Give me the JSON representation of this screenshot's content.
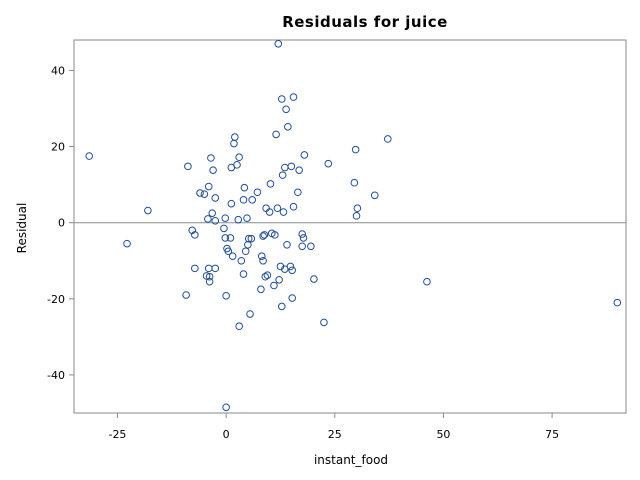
{
  "chart_data": {
    "type": "scatter",
    "title": "Residuals for juice",
    "xlabel": "instant_food",
    "ylabel": "Residual",
    "xlim": [
      -35,
      92
    ],
    "ylim": [
      -50,
      48
    ],
    "xticks": [
      -25,
      0,
      25,
      50,
      75
    ],
    "yticks": [
      -40,
      -20,
      0,
      20,
      40
    ],
    "xtick_labels": [
      "-25",
      "0",
      "25",
      "50",
      "75"
    ],
    "ytick_labels": [
      "-40",
      "-20",
      "0",
      "20",
      "40"
    ],
    "reference_line_y": 0,
    "grid": false,
    "marker": "open-circle",
    "colors": {
      "marker": "#1f4e9c",
      "frame": "#8a8a8a"
    },
    "series": [
      {
        "points": [
          [
            -31.5,
            17.5
          ],
          [
            -22.8,
            -5.5
          ],
          [
            -18,
            3.2
          ],
          [
            -9.2,
            -19
          ],
          [
            -8.8,
            14.8
          ],
          [
            -7.8,
            -2
          ],
          [
            -7.2,
            -3.2
          ],
          [
            -7.2,
            -12
          ],
          [
            -6,
            7.8
          ],
          [
            -5,
            7.5
          ],
          [
            -4.5,
            -14
          ],
          [
            -4.2,
            1
          ],
          [
            -4,
            9.5
          ],
          [
            -4,
            -12
          ],
          [
            -3.8,
            -14.2
          ],
          [
            -3.8,
            -15.5
          ],
          [
            -3.5,
            17
          ],
          [
            -3.2,
            2.5
          ],
          [
            -3,
            13.8
          ],
          [
            -2.5,
            0.5
          ],
          [
            -2.5,
            -12
          ],
          [
            -2.5,
            6.5
          ],
          [
            -0.5,
            -1.5
          ],
          [
            -0.2,
            1.2
          ],
          [
            -0.2,
            -4
          ],
          [
            0,
            -48.5
          ],
          [
            0,
            -19.2
          ],
          [
            0.2,
            -6.8
          ],
          [
            0.5,
            -7.5
          ],
          [
            1,
            -4
          ],
          [
            1.2,
            14.5
          ],
          [
            1.2,
            5
          ],
          [
            1.5,
            -8.8
          ],
          [
            1.8,
            20.8
          ],
          [
            2,
            22.5
          ],
          [
            2.5,
            15.2
          ],
          [
            2.8,
            0.8
          ],
          [
            3,
            17.2
          ],
          [
            3,
            -27.2
          ],
          [
            3.5,
            -10
          ],
          [
            4,
            6
          ],
          [
            4,
            -13.5
          ],
          [
            4.2,
            9.2
          ],
          [
            4.5,
            -7.5
          ],
          [
            4.8,
            1.2
          ],
          [
            5,
            -5.8
          ],
          [
            5.2,
            -4.2
          ],
          [
            5.5,
            -24
          ],
          [
            5.8,
            -4.2
          ],
          [
            6,
            6
          ],
          [
            7.2,
            8
          ],
          [
            8,
            -17.5
          ],
          [
            8.2,
            -8.8
          ],
          [
            8.5,
            -3.5
          ],
          [
            8.5,
            -10
          ],
          [
            8.8,
            -3.2
          ],
          [
            9,
            -14.2
          ],
          [
            9.2,
            3.8
          ],
          [
            9.5,
            -13.8
          ],
          [
            10,
            2.8
          ],
          [
            10.2,
            10.2
          ],
          [
            10.5,
            -2.8
          ],
          [
            11,
            -16.5
          ],
          [
            11.2,
            -3.2
          ],
          [
            11.5,
            23.2
          ],
          [
            11.8,
            3.8
          ],
          [
            12,
            47
          ],
          [
            12.2,
            -15
          ],
          [
            12.5,
            -11.5
          ],
          [
            12.8,
            32.5
          ],
          [
            12.8,
            -22
          ],
          [
            13,
            12.5
          ],
          [
            13.2,
            2.8
          ],
          [
            13.5,
            14.5
          ],
          [
            13.5,
            -12.2
          ],
          [
            13.8,
            29.8
          ],
          [
            14,
            -5.8
          ],
          [
            14.2,
            25.2
          ],
          [
            14.8,
            -11.5
          ],
          [
            15,
            14.8
          ],
          [
            15.2,
            -12.5
          ],
          [
            15.2,
            -19.8
          ],
          [
            15.5,
            33
          ],
          [
            15.5,
            4.2
          ],
          [
            16.5,
            8
          ],
          [
            16.8,
            13.8
          ],
          [
            17.5,
            -3
          ],
          [
            17.5,
            -6.2
          ],
          [
            17.8,
            -4
          ],
          [
            18,
            17.8
          ],
          [
            19.5,
            -6.2
          ],
          [
            20.2,
            -14.8
          ],
          [
            22.5,
            -26.2
          ],
          [
            23.5,
            15.5
          ],
          [
            29.5,
            10.5
          ],
          [
            29.8,
            19.2
          ],
          [
            30,
            1.8
          ],
          [
            30.2,
            3.8
          ],
          [
            34.2,
            7.2
          ],
          [
            37.2,
            22
          ],
          [
            46.2,
            -15.5
          ],
          [
            90,
            -21
          ]
        ]
      }
    ]
  }
}
